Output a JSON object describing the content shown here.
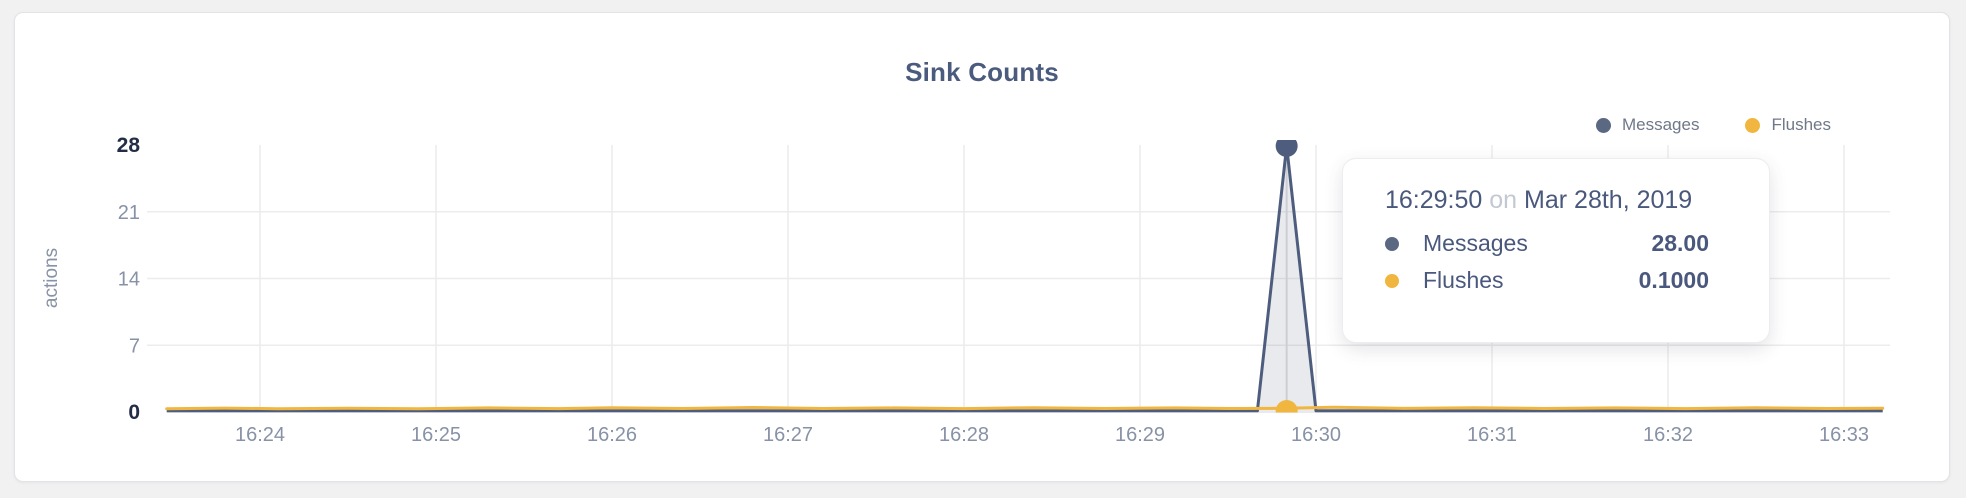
{
  "page": {
    "background_color": "#f1f1f2",
    "card_color": "#ffffff"
  },
  "header": {
    "title": "Sink Counts"
  },
  "legend": {
    "items": [
      {
        "label": "Messages",
        "color": "#5b6882"
      },
      {
        "label": "Flushes",
        "color": "#f1b63f"
      }
    ]
  },
  "chart_data": {
    "type": "line",
    "title": "Sink Counts",
    "xlabel": "",
    "ylabel": "actions",
    "ylim": [
      0,
      28
    ],
    "y_ticks": [
      0,
      7,
      14,
      21,
      28
    ],
    "x_ticks": [
      "16:24",
      "16:25",
      "16:26",
      "16:27",
      "16:28",
      "16:29",
      "16:30",
      "16:31",
      "16:32",
      "16:33"
    ],
    "x_axis_note": "x encoded as minutes after 16:00, samples every 10 seconds",
    "x_range_minutes": [
      23.47,
      33.22
    ],
    "grid": true,
    "legend_position": "top-right",
    "series": [
      {
        "name": "Messages",
        "color": "#4e5d7d",
        "area_fill": "rgba(91,104,130,0.14)",
        "points_minutes_value": [
          [
            23.47,
            0
          ],
          [
            29.667,
            0
          ],
          [
            29.8333,
            28
          ],
          [
            30.0,
            0
          ],
          [
            33.22,
            0
          ]
        ]
      },
      {
        "name": "Flushes",
        "color": "#f1b63f",
        "points_minutes_value": [
          [
            23.47,
            0.06
          ],
          [
            23.8,
            0.12
          ],
          [
            24.1,
            0.06
          ],
          [
            24.5,
            0.1
          ],
          [
            24.9,
            0.05
          ],
          [
            25.3,
            0.14
          ],
          [
            25.7,
            0.07
          ],
          [
            26.0,
            0.16
          ],
          [
            26.4,
            0.08
          ],
          [
            26.8,
            0.18
          ],
          [
            27.2,
            0.08
          ],
          [
            27.6,
            0.14
          ],
          [
            28.0,
            0.07
          ],
          [
            28.4,
            0.16
          ],
          [
            28.8,
            0.08
          ],
          [
            29.2,
            0.14
          ],
          [
            29.5,
            0.08
          ],
          [
            29.8333,
            0.1
          ],
          [
            30.1,
            0.2
          ],
          [
            30.5,
            0.09
          ],
          [
            30.9,
            0.16
          ],
          [
            31.3,
            0.08
          ],
          [
            31.7,
            0.14
          ],
          [
            32.1,
            0.07
          ],
          [
            32.5,
            0.15
          ],
          [
            32.9,
            0.08
          ],
          [
            33.22,
            0.1
          ]
        ]
      }
    ],
    "highlight": {
      "time_label": "16:29:50",
      "x_minutes": 29.8333,
      "markers": [
        {
          "series": "Messages",
          "value": 28.0
        },
        {
          "series": "Flushes",
          "value": 0.1
        }
      ]
    },
    "colors": {
      "gridline": "#ececec",
      "hover_line": "#dfdfe2",
      "tick_dark": "#232d45",
      "tick_gray": "#8792a6",
      "axis_title": "#8792a6"
    }
  },
  "tooltip": {
    "time": "16:29:50",
    "connector": "on",
    "date": "Mar 28th, 2019",
    "rows": [
      {
        "label": "Messages",
        "value": "28.00",
        "color": "#5b6882"
      },
      {
        "label": "Flushes",
        "value": "0.1000",
        "color": "#f1b63f"
      }
    ]
  }
}
